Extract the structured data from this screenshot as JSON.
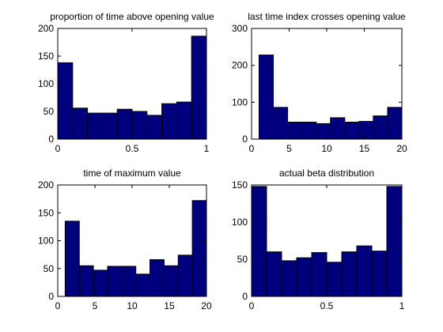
{
  "colors": {
    "bar_fill": "#00007f",
    "bar_edge": "#000000",
    "axis": "#000000",
    "background": "#ffffff"
  },
  "chart_data": [
    {
      "type": "bar",
      "title": "proportion of time above opening value",
      "xlabel": "",
      "ylabel": "",
      "xlim": [
        0,
        1
      ],
      "ylim": [
        0,
        200
      ],
      "xticks": [
        0,
        0.5,
        1
      ],
      "xtick_labels": [
        "0",
        "0.5",
        "1"
      ],
      "yticks": [
        0,
        50,
        100,
        150,
        200
      ],
      "ytick_labels": [
        "0",
        "50",
        "100",
        "150",
        "200"
      ],
      "bin_edges": [
        0,
        0.1,
        0.2,
        0.3,
        0.4,
        0.5,
        0.6,
        0.7,
        0.8,
        0.9,
        1.0
      ],
      "values": [
        138,
        56,
        47,
        47,
        54,
        50,
        43,
        64,
        67,
        186
      ],
      "grid": false,
      "legend": false
    },
    {
      "type": "bar",
      "title": "last time index crosses opening value",
      "xlabel": "",
      "ylabel": "",
      "xlim": [
        0,
        20
      ],
      "ylim": [
        0,
        300
      ],
      "xticks": [
        0,
        5,
        10,
        15,
        20
      ],
      "xtick_labels": [
        "0",
        "5",
        "10",
        "15",
        "20"
      ],
      "yticks": [
        0,
        100,
        200,
        300
      ],
      "ytick_labels": [
        "0",
        "100",
        "200",
        "300"
      ],
      "bin_edges": [
        1,
        2.9,
        4.8,
        6.7,
        8.6,
        10.5,
        12.4,
        14.3,
        16.2,
        18.1,
        20
      ],
      "values": [
        228,
        86,
        46,
        46,
        42,
        58,
        46,
        48,
        63,
        86
      ],
      "grid": false,
      "legend": false
    },
    {
      "type": "bar",
      "title": "time of maximum value",
      "xlabel": "",
      "ylabel": "",
      "xlim": [
        0,
        20
      ],
      "ylim": [
        0,
        200
      ],
      "xticks": [
        0,
        5,
        10,
        15,
        20
      ],
      "xtick_labels": [
        "0",
        "5",
        "10",
        "15",
        "20"
      ],
      "yticks": [
        0,
        50,
        100,
        150,
        200
      ],
      "ytick_labels": [
        "0",
        "50",
        "100",
        "150",
        "200"
      ],
      "bin_edges": [
        1,
        2.9,
        4.8,
        6.7,
        8.6,
        10.5,
        12.4,
        14.3,
        16.2,
        18.1,
        20
      ],
      "values": [
        135,
        55,
        47,
        54,
        54,
        40,
        66,
        55,
        74,
        172
      ],
      "grid": false,
      "legend": false
    },
    {
      "type": "bar",
      "title": "actual beta distribution",
      "xlabel": "",
      "ylabel": "",
      "xlim": [
        0,
        1
      ],
      "ylim": [
        0,
        150
      ],
      "xticks": [
        0,
        0.5,
        1
      ],
      "xtick_labels": [
        "0",
        "0.5",
        "1"
      ],
      "yticks": [
        0,
        50,
        100,
        150
      ],
      "ytick_labels": [
        "0",
        "50",
        "100",
        "150"
      ],
      "bin_edges": [
        0,
        0.1,
        0.2,
        0.3,
        0.4,
        0.5,
        0.6,
        0.7,
        0.8,
        0.9,
        1.0
      ],
      "values": [
        148,
        60,
        48,
        52,
        59,
        46,
        60,
        68,
        61,
        148
      ],
      "grid": false,
      "legend": false
    }
  ]
}
